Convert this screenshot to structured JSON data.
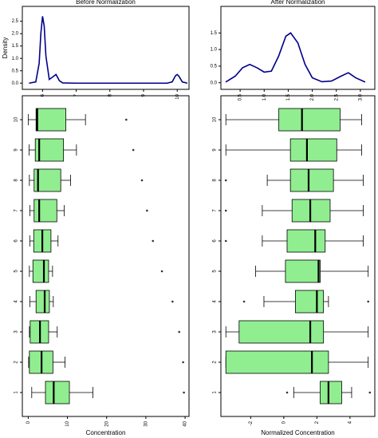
{
  "chart_data": [
    {
      "type": "line",
      "title": "Before Normalization",
      "ylabel": "Density",
      "color": "#00008b",
      "x": [
        5.6,
        5.8,
        5.9,
        5.95,
        6.0,
        6.05,
        6.1,
        6.2,
        6.3,
        6.4,
        6.5,
        6.6,
        7,
        8,
        9,
        9.7,
        9.85,
        9.95,
        10.0,
        10.05,
        10.15,
        10.3
      ],
      "values": [
        0,
        0.05,
        0.8,
        2.0,
        2.7,
        2.3,
        1.1,
        0.15,
        0.25,
        0.35,
        0.1,
        0.01,
        0,
        0,
        0,
        0,
        0.05,
        0.3,
        0.35,
        0.28,
        0.05,
        0
      ],
      "xlim": [
        5.4,
        10.35
      ],
      "xticks": [
        6,
        7,
        8,
        9,
        10
      ],
      "ylim": [
        -0.25,
        3.1
      ],
      "yticks": [
        {
          "value": 0,
          "label": "0.0"
        },
        0.5,
        {
          "value": 1,
          "label": "1.0"
        },
        1.5,
        {
          "value": 2,
          "label": "2.0"
        },
        2.5
      ]
    },
    {
      "type": "line",
      "title": "After Normalization",
      "color": "#00008b",
      "x": [
        0.2,
        0.4,
        0.55,
        0.7,
        0.85,
        1.0,
        1.15,
        1.3,
        1.45,
        1.55,
        1.7,
        1.85,
        2.0,
        2.2,
        2.4,
        2.6,
        2.75,
        2.9,
        3.1
      ],
      "values": [
        0.02,
        0.2,
        0.45,
        0.55,
        0.45,
        0.32,
        0.35,
        0.8,
        1.4,
        1.5,
        1.2,
        0.55,
        0.15,
        0.03,
        0.05,
        0.2,
        0.3,
        0.15,
        0.02
      ],
      "xlim": [
        0.1,
        3.3
      ],
      "xticks": [
        0.5,
        {
          "value": 1,
          "label": "1.0"
        },
        1.5,
        {
          "value": 2,
          "label": "2.0"
        },
        2.5,
        {
          "value": 3,
          "label": "3.0"
        }
      ],
      "ylim": [
        -0.2,
        2.3
      ],
      "yticks": [
        {
          "value": 0,
          "label": "0.0"
        },
        0.5,
        {
          "value": 1,
          "label": "1.0"
        },
        1.5
      ]
    },
    {
      "type": "boxplot",
      "xlabel": "Concentration",
      "color": "#90ee90",
      "categories": [
        "1",
        "2",
        "3",
        "4",
        "5",
        "6",
        "7",
        "8",
        "9",
        "10"
      ],
      "min": [
        0.9,
        0.1,
        0.3,
        0.4,
        0.3,
        0.4,
        0.4,
        0.3,
        0.2,
        0
      ],
      "q1": [
        4.4,
        0.3,
        0.5,
        2,
        1.2,
        1.4,
        1.5,
        1.5,
        1.8,
        2
      ],
      "median": [
        6.5,
        3.4,
        3,
        4.2,
        4,
        3.6,
        2.8,
        2.5,
        2.8,
        2.3
      ],
      "q3": [
        10.5,
        6.3,
        5.2,
        5.4,
        5.2,
        5.8,
        7.3,
        8.3,
        9,
        9.6
      ],
      "max": [
        16.5,
        9.4,
        7.4,
        6.4,
        6.2,
        7.6,
        9.2,
        10.8,
        12.3,
        14.6
      ],
      "outliers": [
        [
          39.7
        ],
        [
          39.5
        ],
        [
          38.5
        ],
        [
          36.8
        ],
        [
          34.1
        ],
        [
          31.8
        ],
        [
          30.3
        ],
        [
          29
        ],
        [
          26.8
        ],
        [
          25
        ]
      ],
      "xlim": [
        -1.5,
        41
      ],
      "xticks": [
        0,
        10,
        20,
        30,
        40
      ]
    },
    {
      "type": "boxplot",
      "xlabel": "Normalized Concentration",
      "color": "#90ee90",
      "categories": [
        "1",
        "2",
        "3",
        "4",
        "5",
        "6",
        "7",
        "8",
        "9",
        "10"
      ],
      "min": [
        0.6,
        -3.5,
        -3.5,
        -1.2,
        -1.7,
        -1.3,
        -1.3,
        -1.0,
        -3.5,
        -3.5
      ],
      "q1": [
        2.2,
        -3.5,
        -2.7,
        0.7,
        0.1,
        0.2,
        0.5,
        0.4,
        0.4,
        -0.3
      ],
      "median": [
        2.7,
        1.7,
        1.6,
        2.0,
        2.1,
        1.9,
        1.6,
        1.5,
        1.4,
        1.1
      ],
      "q3": [
        3.5,
        2.7,
        2.4,
        2.4,
        2.2,
        2.5,
        2.8,
        3.0,
        3.2,
        3.4
      ],
      "max": [
        4.1,
        5.1,
        5.1,
        2.7,
        5.1,
        4.8,
        4.8,
        4.8,
        4.7,
        4.7
      ],
      "outliers": [
        [
          0.2,
          5.2
        ],
        [],
        [],
        [
          -2.4,
          5.1
        ],
        [],
        [
          -3.5
        ],
        [
          -3.5
        ],
        [
          -3.5
        ],
        [],
        []
      ],
      "xlim": [
        -3.8,
        5.5
      ],
      "xticks": [
        -2,
        0,
        2,
        4
      ]
    }
  ]
}
